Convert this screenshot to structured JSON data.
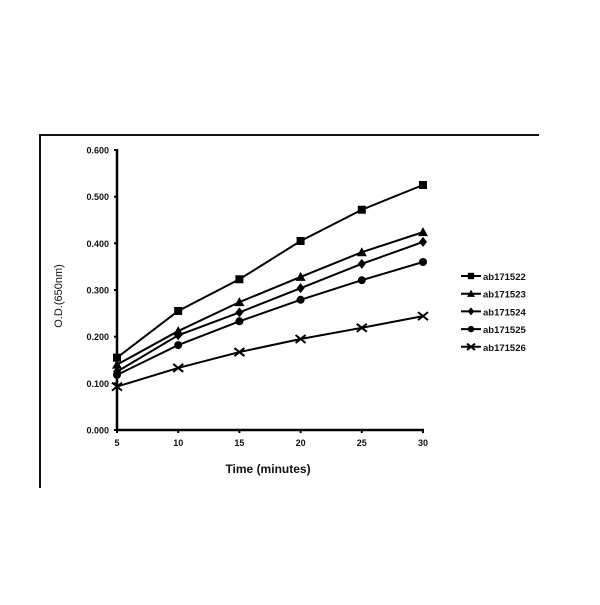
{
  "chart_data": {
    "type": "line",
    "title": "",
    "xlabel": "Time (minutes)",
    "ylabel": "O.D.(650nm)",
    "x": [
      5,
      10,
      15,
      20,
      25,
      30
    ],
    "xticks": [
      "5",
      "10",
      "15",
      "20",
      "25",
      "30"
    ],
    "yticks": [
      "0.000",
      "0.100",
      "0.200",
      "0.300",
      "0.400",
      "0.500",
      "0.600"
    ],
    "xlim": [
      5,
      30
    ],
    "ylim": [
      0,
      0.6
    ],
    "grid": false,
    "legend_position": "right",
    "series": [
      {
        "name": "ab171522",
        "marker": "square",
        "values": [
          0.155,
          0.255,
          0.323,
          0.405,
          0.472,
          0.525
        ]
      },
      {
        "name": "ab171523",
        "marker": "triangle",
        "values": [
          0.14,
          0.212,
          0.274,
          0.328,
          0.381,
          0.424
        ]
      },
      {
        "name": "ab171524",
        "marker": "diamond",
        "values": [
          0.125,
          0.203,
          0.252,
          0.304,
          0.356,
          0.403
        ]
      },
      {
        "name": "ab171525",
        "marker": "circle",
        "values": [
          0.118,
          0.182,
          0.233,
          0.279,
          0.321,
          0.36
        ]
      },
      {
        "name": "ab171526",
        "marker": "x",
        "values": [
          0.093,
          0.133,
          0.167,
          0.195,
          0.219,
          0.244
        ]
      }
    ],
    "colors": {
      "line": "#000000",
      "text": "#111111",
      "background": "#ffffff"
    }
  }
}
